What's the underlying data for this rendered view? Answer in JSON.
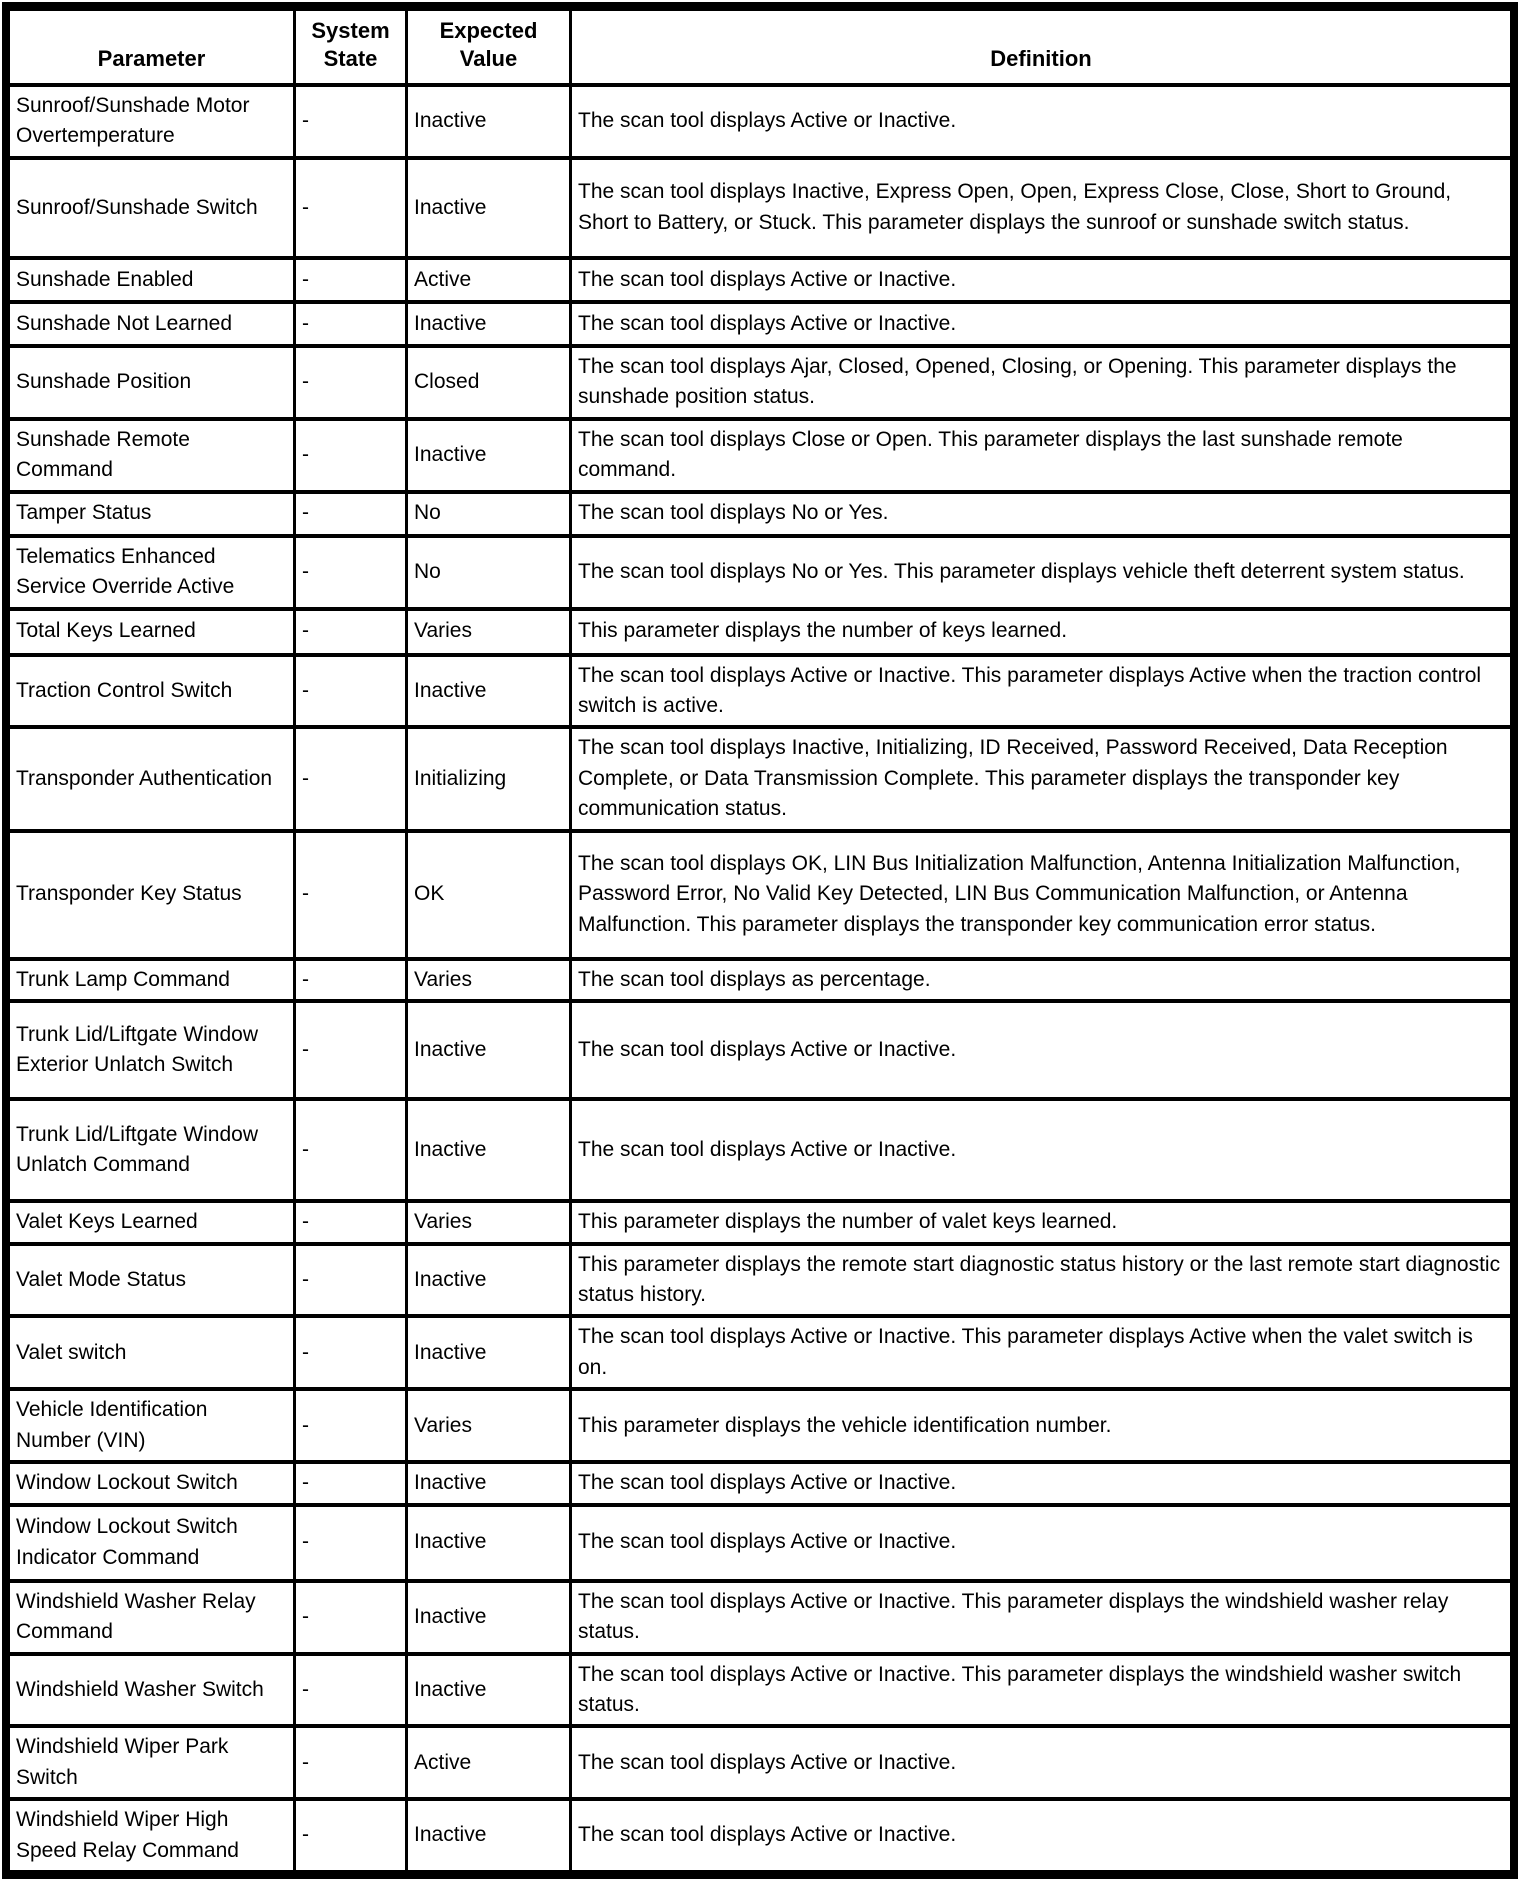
{
  "table": {
    "columns": [
      "Parameter",
      "System State",
      "Expected Value",
      "Definition"
    ],
    "rows": [
      {
        "parameter": "Sunroof/Sunshade Motor Overtemperature",
        "system_state": "-",
        "expected_value": "Inactive",
        "definition": "The scan tool displays Active or Inactive."
      },
      {
        "parameter": "Sunroof/Sunshade Switch",
        "system_state": "-",
        "expected_value": "Inactive",
        "definition": "The scan tool displays Inactive, Express Open, Open, Express Close, Close, Short to Ground, Short to Battery, or Stuck. This parameter displays the sunroof or sunshade switch status."
      },
      {
        "parameter": "Sunshade Enabled",
        "system_state": "-",
        "expected_value": "Active",
        "definition": "The scan tool displays Active or Inactive."
      },
      {
        "parameter": "Sunshade Not Learned",
        "system_state": "-",
        "expected_value": "Inactive",
        "definition": "The scan tool displays Active or Inactive."
      },
      {
        "parameter": "Sunshade Position",
        "system_state": "-",
        "expected_value": "Closed",
        "definition": "The scan tool displays Ajar, Closed, Opened, Closing, or Opening. This parameter displays the sunshade position status."
      },
      {
        "parameter": "Sunshade Remote Command",
        "system_state": "-",
        "expected_value": "Inactive",
        "definition": "The scan tool displays Close or Open. This parameter displays the last sunshade remote command."
      },
      {
        "parameter": "Tamper Status",
        "system_state": "-",
        "expected_value": "No",
        "definition": "The scan tool displays No or Yes."
      },
      {
        "parameter": "Telematics Enhanced Service Override Active",
        "system_state": "-",
        "expected_value": "No",
        "definition": "The scan tool displays No or Yes. This parameter displays vehicle theft deterrent system status."
      },
      {
        "parameter": "Total Keys Learned",
        "system_state": "-",
        "expected_value": "Varies",
        "definition": "This parameter displays the number of keys learned."
      },
      {
        "parameter": "Traction Control Switch",
        "system_state": "-",
        "expected_value": "Inactive",
        "definition": "The scan tool displays Active or Inactive. This parameter displays Active when the traction control switch is active."
      },
      {
        "parameter": "Transponder Authentication",
        "system_state": "-",
        "expected_value": "Initializing",
        "definition": "The scan tool displays Inactive, Initializing, ID Received, Password Received, Data Reception Complete, or Data Transmission Complete. This parameter displays the transponder key communication status."
      },
      {
        "parameter": "Transponder Key Status",
        "system_state": "-",
        "expected_value": "OK",
        "definition": "The scan tool displays OK, LIN Bus Initialization Malfunction, Antenna Initialization Malfunction, Password Error, No Valid Key Detected, LIN Bus Communication Malfunction, or Antenna Malfunction. This parameter displays the transponder key communication error status."
      },
      {
        "parameter": "Trunk Lamp Command",
        "system_state": "-",
        "expected_value": "Varies",
        "definition": "The scan tool displays as percentage."
      },
      {
        "parameter": "Trunk Lid/Liftgate Window Exterior Unlatch Switch",
        "system_state": "-",
        "expected_value": "Inactive",
        "definition": "The scan tool displays Active or Inactive."
      },
      {
        "parameter": "Trunk Lid/Liftgate Window Unlatch Command",
        "system_state": "-",
        "expected_value": "Inactive",
        "definition": "The scan tool displays Active or Inactive."
      },
      {
        "parameter": "Valet Keys Learned",
        "system_state": "-",
        "expected_value": "Varies",
        "definition": "This parameter displays the number of valet keys learned."
      },
      {
        "parameter": "Valet Mode Status",
        "system_state": "-",
        "expected_value": "Inactive",
        "definition": "This parameter displays the remote start diagnostic status history or the last remote start diagnostic status history."
      },
      {
        "parameter": "Valet switch",
        "system_state": "-",
        "expected_value": "Inactive",
        "definition": "The scan tool displays Active or Inactive. This parameter displays Active when the valet switch is on."
      },
      {
        "parameter": "Vehicle Identification Number (VIN)",
        "system_state": "-",
        "expected_value": "Varies",
        "definition": "This parameter displays the vehicle identification number."
      },
      {
        "parameter": "Window Lockout Switch",
        "system_state": "-",
        "expected_value": "Inactive",
        "definition": "The scan tool displays Active or Inactive."
      },
      {
        "parameter": "Window Lockout Switch Indicator Command",
        "system_state": "-",
        "expected_value": "Inactive",
        "definition": "The scan tool displays Active or Inactive."
      },
      {
        "parameter": "Windshield Washer Relay Command",
        "system_state": "-",
        "expected_value": "Inactive",
        "definition": "The scan tool displays Active or Inactive. This parameter displays the windshield washer relay status."
      },
      {
        "parameter": "Windshield Washer Switch",
        "system_state": "-",
        "expected_value": "Inactive",
        "definition": "The scan tool displays Active or Inactive. This parameter displays the windshield washer switch status."
      },
      {
        "parameter": "Windshield Wiper Park Switch",
        "system_state": "-",
        "expected_value": "Active",
        "definition": "The scan tool displays Active or Inactive."
      },
      {
        "parameter": "Windshield Wiper High Speed Relay Command",
        "system_state": "-",
        "expected_value": "Inactive",
        "definition": "The scan tool displays Active or Inactive."
      }
    ]
  }
}
